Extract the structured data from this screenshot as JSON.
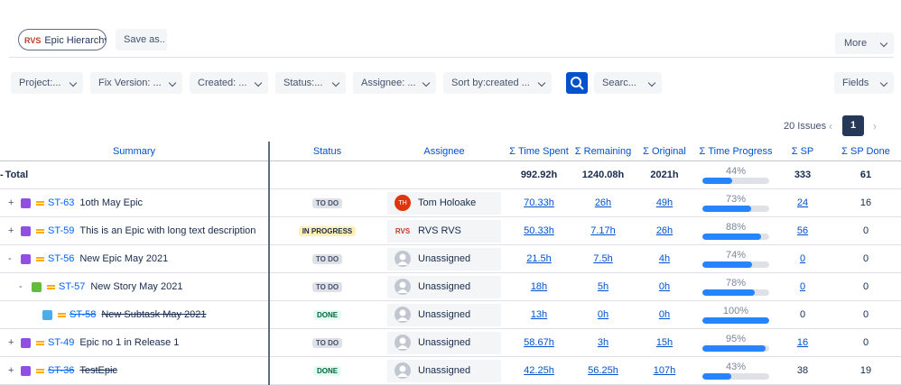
{
  "toolbar": {
    "logo": "RVS",
    "hierarchy_button": "Epic Hierarchy",
    "save_button": "Save as..",
    "more_button": "More"
  },
  "filters": [
    "Project:...",
    "Fix Version: ...",
    "Created: ...",
    "Status:...",
    "Assignee: ...",
    "Sort by:created ..."
  ],
  "search_placeholder": "Searc...",
  "fields_button": "Fields",
  "pagination": {
    "count": "20 Issues",
    "current_page": 1
  },
  "table": {
    "columns": [
      "Summary",
      "Status",
      "Assignee",
      "Σ Time Spent",
      "Σ Remaining",
      "Σ Original",
      "Σ Time Progress",
      "Σ SP",
      "Σ SP Done"
    ],
    "total": {
      "expander": "-",
      "label": "Total",
      "time_spent": "992.92h",
      "remaining": "1240.08h",
      "original": "2021h",
      "progress": {
        "value": 44,
        "label": "44%"
      },
      "sp": 333,
      "sp_done": 61
    },
    "rows": [
      {
        "expander": "+",
        "level": 0,
        "type": "epic",
        "key": "ST-63",
        "resolved": false,
        "summary": "1oth May Epic",
        "status": "TO DO",
        "status_category": "todo",
        "assignee": "Tom Holoake",
        "avatar": "TH",
        "time_spent": "70.33h",
        "remaining": "26h",
        "original": "49h",
        "progress": {
          "value": 73,
          "label": "73%"
        },
        "sp": 24,
        "sp_link": true,
        "sp_done": 16
      },
      {
        "expander": "+",
        "level": 0,
        "type": "epic",
        "key": "ST-59",
        "resolved": false,
        "summary": "This is an Epic with long text description",
        "status": "IN PROGRESS",
        "status_category": "progress",
        "assignee": "RVS RVS",
        "avatar": "RVS",
        "time_spent": "50.33h",
        "remaining": "7.17h",
        "original": "26h",
        "progress": {
          "value": 88,
          "label": "88%"
        },
        "sp": 56,
        "sp_link": true,
        "sp_done": 0
      },
      {
        "expander": "-",
        "level": 0,
        "type": "epic",
        "key": "ST-56",
        "resolved": false,
        "summary": "New Epic May 2021",
        "status": "TO DO",
        "status_category": "todo",
        "assignee": "Unassigned",
        "time_spent": "21.5h",
        "remaining": "7.5h",
        "original": "4h",
        "progress": {
          "value": 74,
          "label": "74%"
        },
        "sp": 0,
        "sp_link": true,
        "sp_done": 0
      },
      {
        "expander": "-",
        "level": 1,
        "type": "story",
        "key": "ST-57",
        "resolved": false,
        "summary": "New Story May 2021",
        "status": "TO DO",
        "status_category": "todo",
        "assignee": "Unassigned",
        "time_spent": "18h",
        "remaining": "5h",
        "original": "0h",
        "progress": {
          "value": 78,
          "label": "78%"
        },
        "sp": 0,
        "sp_link": true,
        "sp_done": 0
      },
      {
        "level": 2,
        "type": "subtask",
        "key": "ST-58",
        "resolved": true,
        "summary": "New Subtask May 2021",
        "status": "DONE",
        "status_category": "done",
        "assignee": "Unassigned",
        "time_spent": "13h",
        "remaining": "0h",
        "original": "0h",
        "progress": {
          "value": 100,
          "label": "100%"
        },
        "sp": 0,
        "sp_link": false,
        "sp_done": 0
      },
      {
        "expander": "+",
        "level": 0,
        "type": "epic",
        "key": "ST-49",
        "resolved": false,
        "summary": "Epic no 1 in Release 1",
        "status": "TO DO",
        "status_category": "todo",
        "assignee": "Unassigned",
        "time_spent": "58.67h",
        "remaining": "3h",
        "original": "15h",
        "progress": {
          "value": 95,
          "label": "95%"
        },
        "sp": 16,
        "sp_link": true,
        "sp_done": 0
      },
      {
        "expander": "+",
        "level": 0,
        "type": "epic",
        "key": "ST-36",
        "resolved": true,
        "summary": "TestEpic",
        "status": "DONE",
        "status_category": "done",
        "assignee": "Unassigned",
        "time_spent": "42.25h",
        "remaining": "56.25h",
        "original": "107h",
        "progress": {
          "value": 43,
          "label": "43%"
        },
        "sp": 38,
        "sp_link": false,
        "sp_done": 19
      }
    ]
  }
}
